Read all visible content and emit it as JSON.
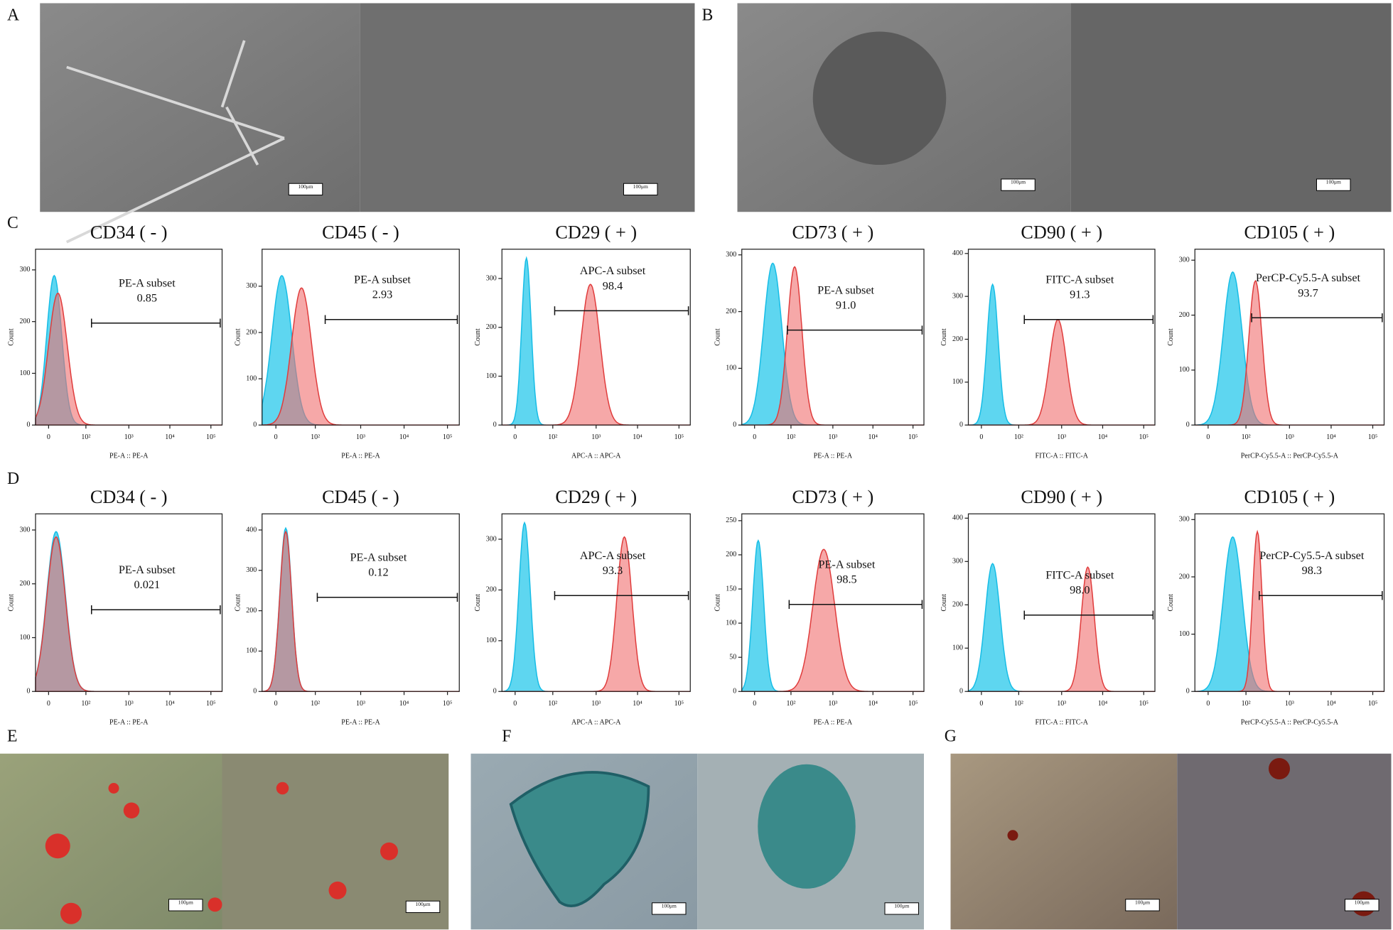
{
  "panel_labels": [
    "A",
    "B",
    "C",
    "D",
    "E",
    "F",
    "G"
  ],
  "scale_bar": "100μm",
  "xtick_labels": [
    "0",
    "10²",
    "10³",
    "10⁴",
    "10⁵"
  ],
  "flow_rows": [
    {
      "plots": [
        {
          "title": "CD34 ( - )",
          "gate_label": "PE-A subset",
          "gate_value": "0.85",
          "x_label": "PE-A :: PE-A",
          "y_label": "Count",
          "ylim": [
            0,
            340
          ],
          "yticks": [
            0,
            100,
            200,
            300
          ]
        },
        {
          "title": "CD45 ( - )",
          "gate_label": "PE-A subset",
          "gate_value": "2.93",
          "x_label": "PE-A :: PE-A",
          "y_label": "Count",
          "ylim": [
            0,
            380
          ],
          "yticks": [
            0,
            100,
            200,
            300
          ]
        },
        {
          "title": "CD29 ( + )",
          "gate_label": "APC-A subset",
          "gate_value": "98.4",
          "x_label": "APC-A :: APC-A",
          "y_label": "Count",
          "ylim": [
            0,
            360
          ],
          "yticks": [
            0,
            100,
            200,
            300
          ]
        },
        {
          "title": "CD73 ( + )",
          "gate_label": "PE-A subset",
          "gate_value": "91.0",
          "x_label": "PE-A :: PE-A",
          "y_label": "Count",
          "ylim": [
            0,
            310
          ],
          "yticks": [
            0,
            100,
            200,
            300
          ]
        },
        {
          "title": "CD90 ( + )",
          "gate_label": "FITC-A subset",
          "gate_value": "91.3",
          "x_label": "FITC-A :: FITC-A",
          "y_label": "Count",
          "ylim": [
            0,
            410
          ],
          "yticks": [
            0,
            100,
            200,
            300,
            400
          ]
        },
        {
          "title": "CD105 ( + )",
          "gate_label": "PerCP-Cy5.5-A subset",
          "gate_value": "93.7",
          "x_label": "PerCP-Cy5.5-A :: PerCP-Cy5.5-A",
          "y_label": "Count",
          "ylim": [
            0,
            320
          ],
          "yticks": [
            0,
            100,
            200,
            300
          ]
        }
      ]
    },
    {
      "plots": [
        {
          "title": "CD34 ( - )",
          "gate_label": "PE-A subset",
          "gate_value": "0.021",
          "x_label": "PE-A :: PE-A",
          "y_label": "Count",
          "ylim": [
            0,
            330
          ],
          "yticks": [
            0,
            100,
            200,
            300
          ]
        },
        {
          "title": "CD45 ( - )",
          "gate_label": "PE-A subset",
          "gate_value": "0.12",
          "x_label": "PE-A :: PE-A",
          "y_label": "Count",
          "ylim": [
            0,
            440
          ],
          "yticks": [
            0,
            100,
            200,
            300,
            400
          ]
        },
        {
          "title": "CD29 ( + )",
          "gate_label": "APC-A subset",
          "gate_value": "93.3",
          "x_label": "APC-A :: APC-A",
          "y_label": "Count",
          "ylim": [
            0,
            350
          ],
          "yticks": [
            0,
            100,
            200,
            300
          ]
        },
        {
          "title": "CD73 ( + )",
          "gate_label": "PE-A subset",
          "gate_value": "98.5",
          "x_label": "PE-A :: PE-A",
          "y_label": "Count",
          "ylim": [
            0,
            260
          ],
          "yticks": [
            0,
            50,
            100,
            150,
            200,
            250
          ]
        },
        {
          "title": "CD90 ( + )",
          "gate_label": "FITC-A subset",
          "gate_value": "98.0",
          "x_label": "FITC-A :: FITC-A",
          "y_label": "Count",
          "ylim": [
            0,
            410
          ],
          "yticks": [
            0,
            100,
            200,
            300,
            400
          ]
        },
        {
          "title": "CD105 ( + )",
          "gate_label": "PerCP-Cy5.5-A subset",
          "gate_value": "98.3",
          "x_label": "PerCP-Cy5.5-A :: PerCP-Cy5.5-A",
          "y_label": "Count",
          "ylim": [
            0,
            310
          ],
          "yticks": [
            0,
            100,
            200,
            300
          ]
        }
      ]
    }
  ]
}
